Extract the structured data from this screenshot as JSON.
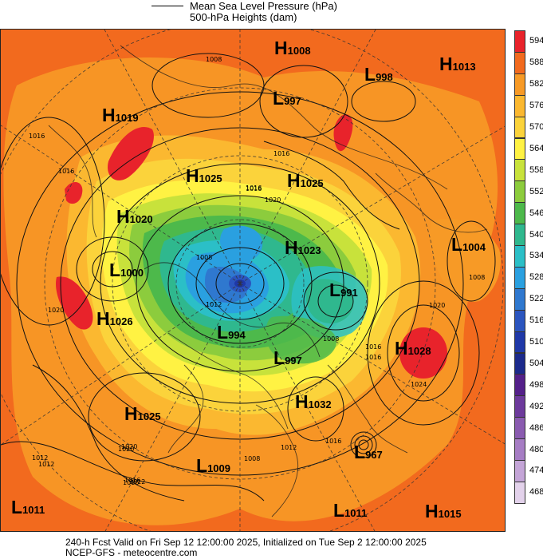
{
  "legend": {
    "mslp_label": "Mean Sea Level Pressure (hPa)",
    "heights_label": "500-hPa Heights (dam)"
  },
  "colorbar": {
    "levels": [
      "594",
      "588",
      "582",
      "576",
      "570",
      "564",
      "558",
      "552",
      "546",
      "540",
      "534",
      "528",
      "522",
      "516",
      "510",
      "504",
      "498",
      "492",
      "486",
      "480",
      "474",
      "468"
    ],
    "colors": [
      "#e8232b",
      "#f26a1e",
      "#f79a26",
      "#fbb830",
      "#fbd33b",
      "#fff243",
      "#c8e23b",
      "#8ccc3d",
      "#4db94b",
      "#2fb88e",
      "#2bbfc7",
      "#2aa0e0",
      "#2f78cf",
      "#2b55bf",
      "#1f38a8",
      "#1c2a8c",
      "#54208a",
      "#6d3a9c",
      "#8a5bb0",
      "#a67dc4",
      "#c4a5d7",
      "#e3d2eb"
    ]
  },
  "pressure_centers": [
    {
      "type": "H",
      "value": "1008",
      "color": "#000000"
    },
    {
      "type": "H",
      "value": "1013",
      "color": "#000000"
    },
    {
      "type": "L",
      "value": "998",
      "color": "#000000"
    },
    {
      "type": "L",
      "value": "997",
      "color": "#000000"
    },
    {
      "type": "H",
      "value": "1019",
      "color": "#000000"
    },
    {
      "type": "H",
      "value": "1025",
      "color": "#000000"
    },
    {
      "type": "H",
      "value": "1025",
      "color": "#000000"
    },
    {
      "type": "H",
      "value": "1020",
      "color": "#000000"
    },
    {
      "type": "L",
      "value": "1004",
      "color": "#000000"
    },
    {
      "type": "H",
      "value": "1023",
      "color": "#000000"
    },
    {
      "type": "L",
      "value": "1000",
      "color": "#000000"
    },
    {
      "type": "L",
      "value": "991",
      "color": "#000000"
    },
    {
      "type": "H",
      "value": "1026",
      "color": "#000000"
    },
    {
      "type": "L",
      "value": "994",
      "color": "#000000"
    },
    {
      "type": "H",
      "value": "1028",
      "color": "#000000"
    },
    {
      "type": "L",
      "value": "997",
      "color": "#000000"
    },
    {
      "type": "H",
      "value": "1032",
      "color": "#000000"
    },
    {
      "type": "H",
      "value": "1025",
      "color": "#000000"
    },
    {
      "type": "L",
      "value": "967",
      "color": "#000000"
    },
    {
      "type": "L",
      "value": "1009",
      "color": "#000000"
    },
    {
      "type": "L",
      "value": "1011",
      "color": "#000000"
    },
    {
      "type": "L",
      "value": "1011",
      "color": "#000000"
    },
    {
      "type": "H",
      "value": "1015",
      "color": "#000000"
    }
  ],
  "isobar_labels": [
    "1008",
    "1016",
    "1016",
    "1020",
    "1012",
    "1008",
    "1016",
    "1016",
    "1012",
    "1008",
    "1016",
    "1012",
    "1008",
    "1020",
    "1016",
    "1020",
    "1016",
    "1012",
    "1008",
    "1024",
    "1020",
    "1016",
    "1012",
    "1016",
    "1016",
    "1020"
  ],
  "footer": {
    "line1": "240-h Fcst Valid on Fri Sep 12 12:00:00 2025, Initialized on Tue Sep  2 12:00:00 2025",
    "line2": "NCEP-GFS  -  meteocentre.com"
  }
}
